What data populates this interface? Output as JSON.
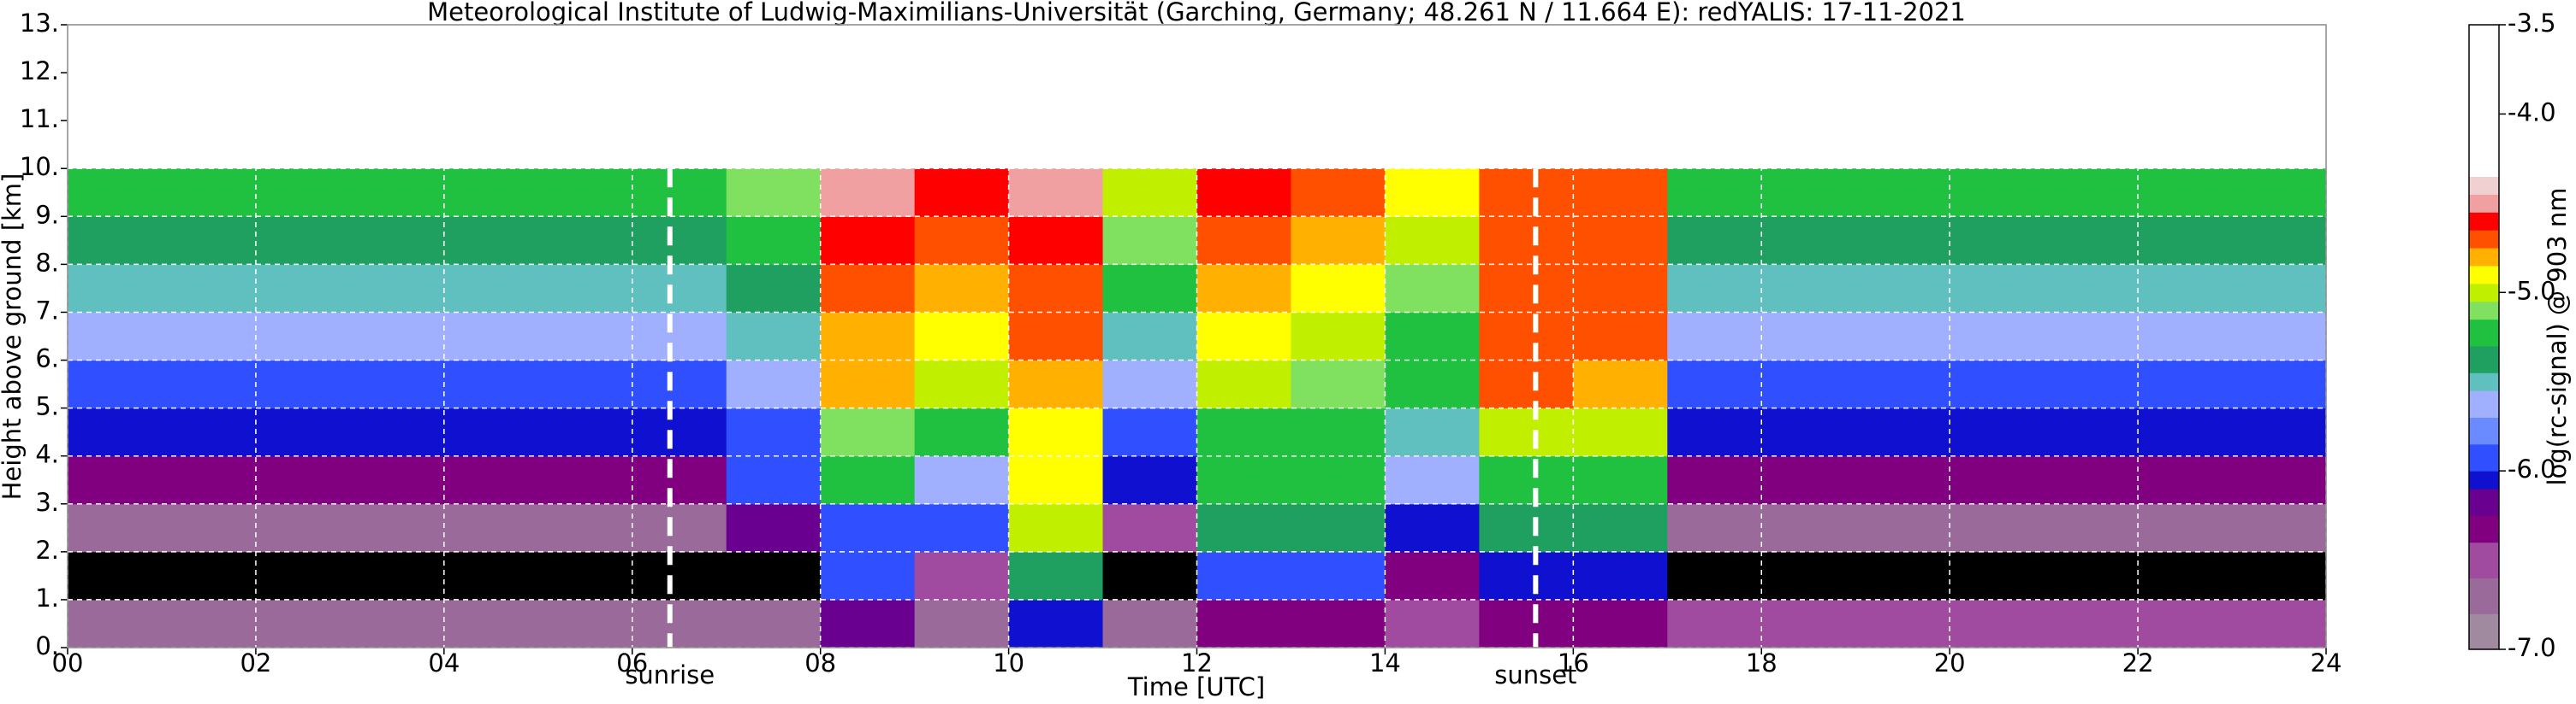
{
  "chart_data": {
    "type": "heatmap",
    "title": "Meteorological Institute of Ludwig-Maximilians-Universität (Garching, Germany; 48.261 N / 11.664 E):    redYALIS: 17-11-2021",
    "x_label": "Time [UTC]",
    "y_label": "Height above ground [km]",
    "colorbar_label": "log(rc-signal) @ 903 nm",
    "xlim": [
      0,
      24
    ],
    "ylim": [
      0,
      13
    ],
    "xticks": [
      {
        "value": 0,
        "label": "00"
      },
      {
        "value": 2,
        "label": "02"
      },
      {
        "value": 4,
        "label": "04"
      },
      {
        "value": 6,
        "label": "06"
      },
      {
        "value": 8,
        "label": "08"
      },
      {
        "value": 10,
        "label": "10"
      },
      {
        "value": 12,
        "label": "12"
      },
      {
        "value": 14,
        "label": "14"
      },
      {
        "value": 16,
        "label": "16"
      },
      {
        "value": 18,
        "label": "18"
      },
      {
        "value": 20,
        "label": "20"
      },
      {
        "value": 22,
        "label": "22"
      },
      {
        "value": 24,
        "label": "24"
      }
    ],
    "yticks": [
      {
        "value": 0,
        "label": "0."
      },
      {
        "value": 1,
        "label": "1."
      },
      {
        "value": 2,
        "label": "2."
      },
      {
        "value": 3,
        "label": "3."
      },
      {
        "value": 4,
        "label": "4."
      },
      {
        "value": 5,
        "label": "5."
      },
      {
        "value": 6,
        "label": "6."
      },
      {
        "value": 7,
        "label": "7."
      },
      {
        "value": 8,
        "label": "8."
      },
      {
        "value": 9,
        "label": "9."
      },
      {
        "value": 10,
        "label": "10."
      },
      {
        "value": 11,
        "label": "11."
      },
      {
        "value": 12,
        "label": "12."
      },
      {
        "value": 13,
        "label": "13."
      }
    ],
    "grid": true,
    "clim": [
      -7,
      -3.5
    ],
    "cticks": [
      -3.5,
      {
        "value": -4,
        "label": "-4.0"
      },
      {
        "value": -5,
        "label": "-5.0"
      },
      {
        "value": -6,
        "label": "-6.0"
      },
      {
        "value": -7,
        "label": "-7.0"
      }
    ],
    "under_color": "#000000",
    "colorscale": [
      {
        "value": -7.0,
        "color": "#a08aa0"
      },
      {
        "value": -6.8,
        "color": "#9a6a9a"
      },
      {
        "value": -6.6,
        "color": "#a04aa0"
      },
      {
        "value": -6.4,
        "color": "#800080"
      },
      {
        "value": -6.25,
        "color": "#6a0090"
      },
      {
        "value": -6.1,
        "color": "#1010d0"
      },
      {
        "value": -6.0,
        "color": "#3050ff"
      },
      {
        "value": -5.85,
        "color": "#6a8aff"
      },
      {
        "value": -5.7,
        "color": "#a0b0ff"
      },
      {
        "value": -5.55,
        "color": "#60c0c0"
      },
      {
        "value": -5.45,
        "color": "#20a060"
      },
      {
        "value": -5.3,
        "color": "#20c040"
      },
      {
        "value": -5.15,
        "color": "#80e060"
      },
      {
        "value": -5.05,
        "color": "#c0f000"
      },
      {
        "value": -4.95,
        "color": "#ffff00"
      },
      {
        "value": -4.85,
        "color": "#ffb000"
      },
      {
        "value": -4.75,
        "color": "#ff5000"
      },
      {
        "value": -4.65,
        "color": "#ff0000"
      },
      {
        "value": -4.55,
        "color": "#f0a0a0"
      },
      {
        "value": -4.45,
        "color": "#f0d0d0"
      },
      {
        "value": -4.35,
        "color": "#ffffff"
      }
    ],
    "x_edges": [
      0,
      1,
      2,
      3,
      4,
      5,
      6,
      7,
      8,
      9,
      10,
      11,
      12,
      13,
      14,
      15,
      16,
      17,
      18,
      19,
      20,
      21,
      22,
      23,
      24
    ],
    "y_edges": [
      0,
      1,
      2,
      3,
      4,
      5,
      6,
      7,
      8,
      9,
      10
    ],
    "z": [
      [
        -6.8,
        -6.8,
        -6.8,
        -6.8,
        -6.8,
        -6.8,
        -6.8,
        -6.8,
        -6.2,
        -6.8,
        -6.1,
        -6.8,
        -6.3,
        -6.3,
        -6.6,
        -6.4,
        -6.4,
        -6.6,
        -6.6,
        -6.6,
        -6.6,
        -6.6,
        -6.6,
        -6.6
      ],
      [
        -7.3,
        -7.3,
        -7.3,
        -7.3,
        -7.3,
        -7.3,
        -7.3,
        -7.2,
        -6.0,
        -6.5,
        -5.4,
        -7.1,
        -5.9,
        -5.9,
        -6.4,
        -6.1,
        -6.1,
        -7.3,
        -7.3,
        -7.3,
        -7.3,
        -7.3,
        -7.3,
        -7.3
      ],
      [
        -6.7,
        -6.7,
        -6.7,
        -6.7,
        -6.7,
        -6.7,
        -6.7,
        -6.2,
        -5.9,
        -6.0,
        -5.0,
        -6.5,
        -5.4,
        -5.4,
        -6.1,
        -5.35,
        -5.35,
        -6.7,
        -6.7,
        -6.7,
        -6.7,
        -6.7,
        -6.7,
        -6.7
      ],
      [
        -6.4,
        -6.4,
        -6.4,
        -6.4,
        -6.4,
        -6.4,
        -6.4,
        -6.0,
        -5.3,
        -5.6,
        -4.95,
        -6.1,
        -5.3,
        -5.3,
        -5.7,
        -5.25,
        -5.25,
        -6.4,
        -6.4,
        -6.4,
        -6.4,
        -6.4,
        -6.4,
        -6.4
      ],
      [
        -6.1,
        -6.1,
        -6.1,
        -6.1,
        -6.1,
        -6.1,
        -6.1,
        -5.9,
        -5.1,
        -5.3,
        -4.9,
        -5.9,
        -5.2,
        -5.2,
        -5.5,
        -5.0,
        -5.05,
        -6.1,
        -6.1,
        -6.1,
        -6.1,
        -6.1,
        -6.1,
        -6.1
      ],
      [
        -5.9,
        -5.9,
        -5.9,
        -5.9,
        -5.9,
        -5.9,
        -5.9,
        -5.7,
        -4.85,
        -5.0,
        -4.8,
        -5.7,
        -5.0,
        -5.1,
        -5.3,
        -4.75,
        -4.8,
        -5.9,
        -5.9,
        -5.9,
        -5.9,
        -5.9,
        -5.9,
        -5.9
      ],
      [
        -5.7,
        -5.7,
        -5.7,
        -5.7,
        -5.7,
        -5.7,
        -5.7,
        -5.5,
        -4.8,
        -4.9,
        -4.75,
        -5.5,
        -4.9,
        -5.0,
        -5.2,
        -4.7,
        -4.75,
        -5.7,
        -5.7,
        -5.7,
        -5.7,
        -5.7,
        -5.7,
        -5.7
      ],
      [
        -5.5,
        -5.5,
        -5.5,
        -5.5,
        -5.5,
        -5.5,
        -5.5,
        -5.4,
        -4.75,
        -4.8,
        -4.7,
        -5.3,
        -4.85,
        -4.9,
        -5.1,
        -4.7,
        -4.7,
        -5.5,
        -5.5,
        -5.5,
        -5.5,
        -5.5,
        -5.5,
        -5.5
      ],
      [
        -5.4,
        -5.4,
        -5.4,
        -5.4,
        -5.4,
        -5.4,
        -5.4,
        -5.2,
        -4.6,
        -4.7,
        -4.6,
        -5.1,
        -4.75,
        -4.8,
        -5.0,
        -4.7,
        -4.7,
        -5.4,
        -5.4,
        -5.4,
        -5.4,
        -5.4,
        -5.4,
        -5.4
      ],
      [
        -5.3,
        -5.3,
        -5.3,
        -5.3,
        -5.3,
        -5.3,
        -5.3,
        -5.1,
        -4.5,
        -4.6,
        -4.5,
        -5.0,
        -4.6,
        -4.7,
        -4.9,
        -4.7,
        -4.7,
        -5.3,
        -5.3,
        -5.3,
        -5.3,
        -5.3,
        -5.3,
        -5.3
      ]
    ],
    "annotations": [
      {
        "text": "sunrise",
        "x": 6.4
      },
      {
        "text": "sunset",
        "x": 15.6
      }
    ]
  }
}
